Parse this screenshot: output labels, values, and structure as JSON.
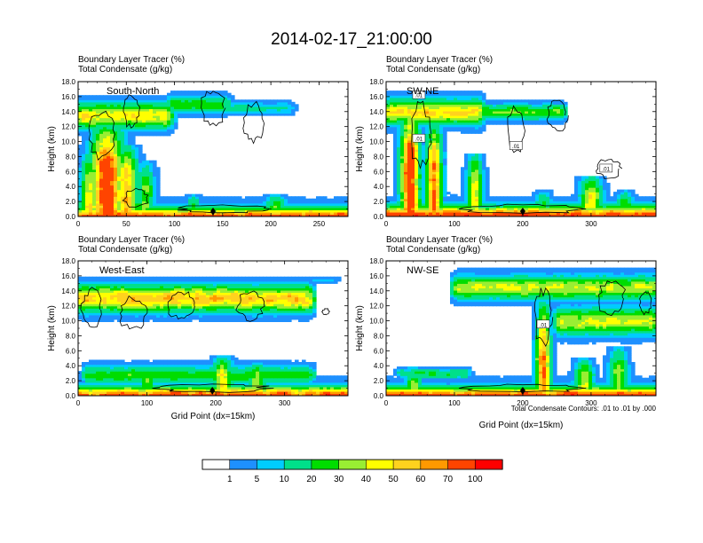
{
  "figure_title": "2014-02-17_21:00:00",
  "colors": {
    "levels": [
      "#ffffff",
      "#1e90ff",
      "#00ccff",
      "#00e08a",
      "#00dd00",
      "#99ee33",
      "#ffff00",
      "#ffd21e",
      "#ff9900",
      "#ff4400",
      "#ff0000"
    ],
    "contour": "#000000",
    "frame": "#000000"
  },
  "chart_data": [
    {
      "type": "heatmap",
      "label_left_1": "Boundary Layer Tracer   (%)",
      "label_left_2": "Total Condensate   (g/kg)",
      "panel_label": "South-North",
      "ylabel": "Height (km)",
      "xlabel": "",
      "xlim": [
        0,
        280
      ],
      "ylim": [
        0,
        18
      ],
      "x_ticks": [
        0,
        50,
        100,
        150,
        200,
        250
      ],
      "x_tick_labels": [
        "0",
        "50",
        "100",
        "150",
        "200",
        "250"
      ],
      "y_ticks": [
        0,
        2,
        4,
        6,
        8,
        10,
        12,
        14,
        16,
        18
      ],
      "y_tick_labels": [
        "0.0",
        "2.0",
        "4.0",
        "6.0",
        "8.0",
        "10.0",
        "12.0",
        "14.0",
        "16.0",
        "18.0"
      ],
      "marker_x": 140,
      "contour_labels": [],
      "field": {
        "base": 62,
        "surface_depth": 0.9,
        "plumes": [
          {
            "x": 30,
            "w": 14,
            "top": 12,
            "peak": 85
          },
          {
            "x": 50,
            "w": 10,
            "top": 9,
            "peak": 60
          },
          {
            "x": 12,
            "w": 8,
            "top": 8,
            "peak": 45
          },
          {
            "x": 70,
            "w": 8,
            "top": 7,
            "peak": 30
          },
          {
            "x": 120,
            "w": 6,
            "top": 2.5,
            "peak": 25
          },
          {
            "x": 205,
            "w": 10,
            "top": 2.5,
            "peak": 30
          }
        ],
        "anvils": [
          {
            "x0": 0,
            "x1": 95,
            "yc": 13.5,
            "h": 3.2,
            "peak": 48
          },
          {
            "x0": 95,
            "x1": 155,
            "yc": 15,
            "h": 2.2,
            "peak": 25
          },
          {
            "x0": 150,
            "x1": 220,
            "yc": 14.5,
            "h": 1.6,
            "peak": 12
          }
        ],
        "cloud_rings": [
          {
            "x": 140,
            "y": 14.5,
            "rx": 12,
            "ry": 2.3
          },
          {
            "x": 182,
            "y": 12.5,
            "rx": 10,
            "ry": 2.5
          },
          {
            "x": 25,
            "y": 11,
            "rx": 14,
            "ry": 3
          },
          {
            "x": 55,
            "y": 14,
            "rx": 8,
            "ry": 2
          },
          {
            "x": 150,
            "y": 1,
            "rx": 45,
            "ry": 0.5
          },
          {
            "x": 60,
            "y": 2.5,
            "rx": 12,
            "ry": 1.2
          }
        ],
        "seed": 11
      }
    },
    {
      "type": "heatmap",
      "label_left_1": "Boundary Layer Tracer   (%)",
      "label_left_2": "Total Condensate   (g/kg)",
      "panel_label": "SW-NE",
      "ylabel": "Height (km)",
      "xlabel": "",
      "xlim": [
        0,
        395
      ],
      "ylim": [
        0,
        18
      ],
      "x_ticks": [
        0,
        100,
        200,
        300
      ],
      "x_tick_labels": [
        "0",
        "100",
        "200",
        "300"
      ],
      "y_ticks": [
        0,
        2,
        4,
        6,
        8,
        10,
        12,
        14,
        16,
        18
      ],
      "y_tick_labels": [
        "0.0",
        "2.0",
        "4.0",
        "6.0",
        "8.0",
        "10.0",
        "12.0",
        "14.0",
        "16.0",
        "18.0"
      ],
      "marker_x": 200,
      "contour_labels": [
        {
          "text": ".01",
          "x": 48,
          "y": 10.4
        },
        {
          "text": ".01",
          "x": 190,
          "y": 9.4
        },
        {
          "text": ".01",
          "x": 322,
          "y": 6.4
        },
        {
          "text": ".01",
          "x": 48,
          "y": 16.2
        }
      ],
      "field": {
        "base": 70,
        "surface_depth": 1.1,
        "plumes": [
          {
            "x": 35,
            "w": 12,
            "top": 14,
            "peak": 80
          },
          {
            "x": 70,
            "w": 10,
            "top": 12,
            "peak": 70
          },
          {
            "x": 130,
            "w": 10,
            "top": 8,
            "peak": 45
          },
          {
            "x": 300,
            "w": 14,
            "top": 5,
            "peak": 45
          },
          {
            "x": 350,
            "w": 10,
            "top": 3,
            "peak": 30
          },
          {
            "x": 230,
            "w": 10,
            "top": 3,
            "peak": 25
          }
        ],
        "anvils": [
          {
            "x0": 0,
            "x1": 140,
            "yc": 14,
            "h": 3.2,
            "peak": 50
          },
          {
            "x0": 140,
            "x1": 260,
            "yc": 14,
            "h": 2.0,
            "peak": 30
          }
        ],
        "cloud_rings": [
          {
            "x": 50,
            "y": 11,
            "rx": 14,
            "ry": 4
          },
          {
            "x": 190,
            "y": 11.5,
            "rx": 12,
            "ry": 3
          },
          {
            "x": 325,
            "y": 6.4,
            "rx": 18,
            "ry": 1.2
          },
          {
            "x": 250,
            "y": 13.5,
            "rx": 14,
            "ry": 2
          },
          {
            "x": 200,
            "y": 1,
            "rx": 80,
            "ry": 0.6
          }
        ],
        "seed": 23
      }
    },
    {
      "type": "heatmap",
      "label_left_1": "Boundary Layer Tracer   (%)",
      "label_left_2": "Total Condensate   (g/kg)",
      "panel_label": "West-East",
      "ylabel": "Height (km)",
      "xlabel": "Grid Point (dx=15km)",
      "xlim": [
        0,
        392
      ],
      "ylim": [
        0,
        18
      ],
      "x_ticks": [
        0,
        100,
        200,
        300
      ],
      "x_tick_labels": [
        "0",
        "100",
        "200",
        "300"
      ],
      "y_ticks": [
        0,
        2,
        4,
        6,
        8,
        10,
        12,
        14,
        16,
        18
      ],
      "y_tick_labels": [
        "0.0",
        "2.0",
        "4.0",
        "6.0",
        "8.0",
        "10.0",
        "12.0",
        "14.0",
        "16.0",
        "18.0"
      ],
      "marker_x": 195,
      "contour_labels": [],
      "field": {
        "base": 60,
        "surface_depth": 1.0,
        "plumes": [
          {
            "x": 210,
            "w": 12,
            "top": 5,
            "peak": 45
          },
          {
            "x": 260,
            "w": 10,
            "top": 4,
            "peak": 40
          },
          {
            "x": 100,
            "w": 10,
            "top": 3.5,
            "peak": 30
          }
        ],
        "anvils": [
          {
            "x0": 0,
            "x1": 340,
            "yc": 13,
            "h": 3.4,
            "peak": 55
          },
          {
            "x0": 330,
            "x1": 375,
            "yc": 15.5,
            "h": 0.9,
            "peak": 6
          },
          {
            "x0": 10,
            "x1": 340,
            "yc": 2.8,
            "h": 2.4,
            "peak": 25
          }
        ],
        "cloud_rings": [
          {
            "x": 20,
            "y": 11.5,
            "rx": 14,
            "ry": 2.5
          },
          {
            "x": 80,
            "y": 11,
            "rx": 20,
            "ry": 2
          },
          {
            "x": 150,
            "y": 12,
            "rx": 18,
            "ry": 1.8
          },
          {
            "x": 250,
            "y": 12,
            "rx": 18,
            "ry": 1.8
          },
          {
            "x": 360,
            "y": 11.2,
            "rx": 5,
            "ry": 0.4
          },
          {
            "x": 195,
            "y": 1,
            "rx": 80,
            "ry": 0.5
          }
        ],
        "seed": 37
      }
    },
    {
      "type": "heatmap",
      "label_left_1": "Boundary Layer Tracer   (%)",
      "label_left_2": "Total Condensate   (g/kg)",
      "panel_label": "NW-SE",
      "ylabel": "Height (km)",
      "xlabel": "Grid Point (dx=15km)",
      "footnote": "Total Condensate Contours: .01 to .01 by .000",
      "xlim": [
        0,
        395
      ],
      "ylim": [
        0,
        18
      ],
      "x_ticks": [
        0,
        100,
        200,
        300
      ],
      "x_tick_labels": [
        "0",
        "100",
        "200",
        "300"
      ],
      "y_ticks": [
        0,
        2,
        4,
        6,
        8,
        10,
        12,
        14,
        16,
        18
      ],
      "y_tick_labels": [
        "0.0",
        "2.0",
        "4.0",
        "6.0",
        "8.0",
        "10.0",
        "12.0",
        "14.0",
        "16.0",
        "18.0"
      ],
      "marker_x": 200,
      "contour_labels": [
        {
          "text": ".01",
          "x": 230,
          "y": 9.5
        }
      ],
      "field": {
        "base": 65,
        "surface_depth": 0.9,
        "plumes": [
          {
            "x": 230,
            "w": 9,
            "top": 12,
            "peak": 70
          },
          {
            "x": 40,
            "w": 10,
            "top": 3.5,
            "peak": 35
          },
          {
            "x": 290,
            "w": 12,
            "top": 4.5,
            "peak": 40
          },
          {
            "x": 340,
            "w": 12,
            "top": 6,
            "peak": 35
          }
        ],
        "anvils": [
          {
            "x0": 100,
            "x1": 395,
            "yc": 14.5,
            "h": 3.0,
            "peak": 40
          },
          {
            "x0": 250,
            "x1": 395,
            "yc": 10,
            "h": 3.5,
            "peak": 40
          },
          {
            "x0": 20,
            "x1": 120,
            "yc": 3,
            "h": 1.3,
            "peak": 20
          }
        ],
        "cloud_rings": [
          {
            "x": 230,
            "y": 10.5,
            "rx": 12,
            "ry": 3.5
          },
          {
            "x": 330,
            "y": 13,
            "rx": 20,
            "ry": 2
          },
          {
            "x": 380,
            "y": 12.5,
            "rx": 8,
            "ry": 1.5
          },
          {
            "x": 200,
            "y": 1,
            "rx": 80,
            "ry": 0.5
          }
        ],
        "seed": 53
      }
    }
  ],
  "colorbar": {
    "labels": [
      "1",
      "5",
      "10",
      "20",
      "30",
      "40",
      "50",
      "60",
      "70",
      "100"
    ],
    "colors": [
      "#ffffff",
      "#1e90ff",
      "#00ccff",
      "#00e08a",
      "#00dd00",
      "#99ee33",
      "#ffff00",
      "#ffd21e",
      "#ff9900",
      "#ff4400",
      "#ff0000"
    ]
  }
}
